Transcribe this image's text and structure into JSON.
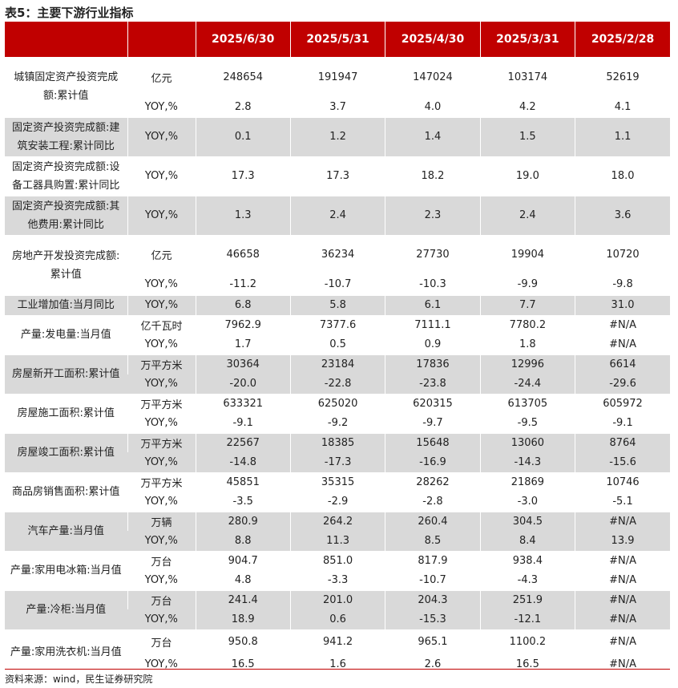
{
  "title": "表5：主要下游行业指标",
  "columns": [
    "",
    "",
    "2025/6/30",
    "2025/5/31",
    "2025/4/30",
    "2025/3/31",
    "2025/2/28"
  ],
  "groups": [
    {
      "name": "城镇固定资产投资完成额:累计值",
      "rows": [
        [
          "亿元",
          "248654",
          "191947",
          "147024",
          "103174",
          "52619"
        ],
        [
          "YOY,%",
          "2.8",
          "3.7",
          "4.0",
          "4.2",
          "4.1"
        ]
      ]
    },
    {
      "name": "固定资产投资完成额:建筑安装工程:累计同比",
      "rows": [
        [
          "YOY,%",
          "0.1",
          "1.2",
          "1.4",
          "1.5",
          "1.1"
        ]
      ]
    },
    {
      "name": "固定资产投资完成额:设备工器具购置:累计同比",
      "rows": [
        [
          "YOY,%",
          "17.3",
          "17.3",
          "18.2",
          "19.0",
          "18.0"
        ]
      ]
    },
    {
      "name": "固定资产投资完成额:其他费用:累计同比",
      "rows": [
        [
          "YOY,%",
          "1.3",
          "2.4",
          "2.3",
          "2.4",
          "3.6"
        ]
      ]
    },
    {
      "name": "房地产开发投资完成额:累计值",
      "rows": [
        [
          "亿元",
          "46658",
          "36234",
          "27730",
          "19904",
          "10720"
        ],
        [
          "YOY,%",
          "-11.2",
          "-10.7",
          "-10.3",
          "-9.9",
          "-9.8"
        ]
      ]
    },
    {
      "name": "工业增加值:当月同比",
      "rows": [
        [
          "YOY,%",
          "6.8",
          "5.8",
          "6.1",
          "7.7",
          "31.0"
        ]
      ]
    },
    {
      "name": "产量:发电量:当月值",
      "rows": [
        [
          "亿千瓦时",
          "7962.9",
          "7377.6",
          "7111.1",
          "7780.2",
          "#N/A"
        ],
        [
          "YOY,%",
          "1.7",
          "0.5",
          "0.9",
          "1.8",
          "#N/A"
        ]
      ]
    },
    {
      "name": "房屋新开工面积:累计值",
      "rows": [
        [
          "万平方米",
          "30364",
          "23184",
          "17836",
          "12996",
          "6614"
        ],
        [
          "YOY,%",
          "-20.0",
          "-22.8",
          "-23.8",
          "-24.4",
          "-29.6"
        ]
      ]
    },
    {
      "name": "房屋施工面积:累计值",
      "rows": [
        [
          "万平方米",
          "633321",
          "625020",
          "620315",
          "613705",
          "605972"
        ],
        [
          "YOY,%",
          "-9.1",
          "-9.2",
          "-9.7",
          "-9.5",
          "-9.1"
        ]
      ]
    },
    {
      "name": "房屋竣工面积:累计值",
      "rows": [
        [
          "万平方米",
          "22567",
          "18385",
          "15648",
          "13060",
          "8764"
        ],
        [
          "YOY,%",
          "-14.8",
          "-17.3",
          "-16.9",
          "-14.3",
          "-15.6"
        ]
      ]
    },
    {
      "name": "商品房销售面积:累计值",
      "rows": [
        [
          "万平方米",
          "45851",
          "35315",
          "28262",
          "21869",
          "10746"
        ],
        [
          "YOY,%",
          "-3.5",
          "-2.9",
          "-2.8",
          "-3.0",
          "-5.1"
        ]
      ]
    },
    {
      "name": "汽车产量:当月值",
      "rows": [
        [
          "万辆",
          "280.9",
          "264.2",
          "260.4",
          "304.5",
          "#N/A"
        ],
        [
          "YOY,%",
          "8.8",
          "11.3",
          "8.5",
          "8.4",
          "13.9"
        ]
      ]
    },
    {
      "name": "产量:家用电冰箱:当月值",
      "rows": [
        [
          "万台",
          "904.7",
          "851.0",
          "817.9",
          "938.4",
          "#N/A"
        ],
        [
          "YOY,%",
          "4.8",
          "-3.3",
          "-10.7",
          "-4.3",
          "#N/A"
        ]
      ]
    },
    {
      "name": "产量:冷柜:当月值",
      "rows": [
        [
          "万台",
          "241.4",
          "201.0",
          "204.3",
          "251.9",
          "#N/A"
        ],
        [
          "YOY,%",
          "18.9",
          "0.6",
          "-15.3",
          "-12.1",
          "#N/A"
        ]
      ]
    },
    {
      "name": "产量:家用洗衣机:当月值",
      "rows": [
        [
          "万台",
          "950.8",
          "941.2",
          "965.1",
          "1100.2",
          "#N/A"
        ],
        [
          "YOY,%",
          "16.5",
          "1.6",
          "2.6",
          "16.5",
          "#N/A"
        ]
      ]
    }
  ],
  "source": "资料来源：wind，民生证券研究院",
  "colors": {
    "header_bg": "#c00000",
    "stripe_bg": "#d9d9d9"
  }
}
